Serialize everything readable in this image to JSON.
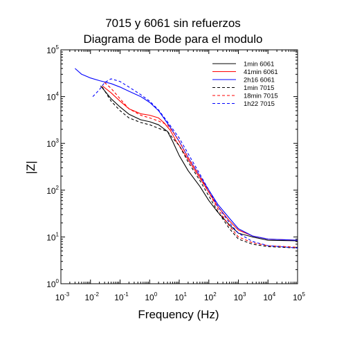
{
  "chart_data": {
    "type": "line",
    "title": "7015 y 6061 sin refuerzos",
    "subtitle": "Diagrama de Bode para el modulo",
    "xlabel": "Frequency (Hz)",
    "ylabel": "|Z|",
    "x_scale": "log",
    "y_scale": "log",
    "xlim": [
      0.001,
      100000
    ],
    "ylim": [
      1,
      100000
    ],
    "x_ticks": [
      {
        "base": "10",
        "exp": "-3"
      },
      {
        "base": "10",
        "exp": "-2"
      },
      {
        "base": "10",
        "exp": "-1"
      },
      {
        "base": "10",
        "exp": "0"
      },
      {
        "base": "10",
        "exp": "1"
      },
      {
        "base": "10",
        "exp": "2"
      },
      {
        "base": "10",
        "exp": "3"
      },
      {
        "base": "10",
        "exp": "4"
      },
      {
        "base": "10",
        "exp": "5"
      }
    ],
    "y_ticks": [
      {
        "base": "10",
        "exp": "0"
      },
      {
        "base": "10",
        "exp": "1"
      },
      {
        "base": "10",
        "exp": "2"
      },
      {
        "base": "10",
        "exp": "3"
      },
      {
        "base": "10",
        "exp": "4"
      },
      {
        "base": "10",
        "exp": "5"
      }
    ],
    "grid": false,
    "legend_position": "top-right",
    "series": [
      {
        "name": "1min 6061",
        "color": "#000000",
        "dash": "solid",
        "x": [
          0.022,
          0.05,
          0.1,
          0.2,
          0.5,
          1,
          2,
          4,
          6,
          10,
          20,
          50,
          100,
          200,
          500,
          1000,
          3000,
          10000,
          100000
        ],
        "y": [
          17000,
          9000,
          6000,
          4200,
          3200,
          2900,
          2500,
          1800,
          1100,
          550,
          260,
          120,
          60,
          34,
          18,
          12,
          10,
          8.5,
          8.3
        ]
      },
      {
        "name": "41min 6061",
        "color": "#ff0000",
        "dash": "solid",
        "x": [
          0.025,
          0.05,
          0.1,
          0.2,
          0.5,
          1,
          2,
          3,
          5,
          8,
          10,
          20,
          50,
          100,
          200,
          500,
          1000,
          3000,
          10000,
          100000
        ],
        "y": [
          17000,
          12000,
          8000,
          5500,
          4300,
          4000,
          3500,
          2800,
          1900,
          1100,
          900,
          450,
          180,
          90,
          45,
          22,
          14,
          10.5,
          9,
          8.5
        ]
      },
      {
        "name": "2h16 6061",
        "color": "#0000ff",
        "dash": "solid",
        "x": [
          0.003,
          0.005,
          0.01,
          0.02,
          0.05,
          0.1,
          0.2,
          0.5,
          1,
          2,
          3,
          5,
          10,
          20,
          50,
          100,
          200,
          500,
          1000,
          3000,
          10000,
          100000
        ],
        "y": [
          40000,
          30000,
          25000,
          22000,
          19000,
          16000,
          13000,
          10000,
          7500,
          5000,
          3500,
          2200,
          1100,
          500,
          200,
          100,
          50,
          25,
          15,
          10.5,
          9,
          8.5
        ]
      },
      {
        "name": "1min 7015",
        "color": "#000000",
        "dash": "dashed",
        "x": [
          0.025,
          0.05,
          0.1,
          0.2,
          0.5,
          1,
          2,
          4,
          6,
          10,
          20,
          50,
          100,
          200,
          500,
          1000,
          3000,
          10000,
          100000
        ],
        "y": [
          16000,
          8000,
          5000,
          3500,
          2800,
          2500,
          2100,
          1800,
          1300,
          900,
          400,
          160,
          75,
          35,
          15,
          9,
          7,
          6.2,
          5.8
        ]
      },
      {
        "name": "18min 7015",
        "color": "#ff0000",
        "dash": "dashed",
        "x": [
          0.03,
          0.05,
          0.1,
          0.2,
          0.5,
          1,
          2,
          4,
          6,
          10,
          20,
          50,
          100,
          200,
          500,
          1000,
          3000,
          10000,
          100000
        ],
        "y": [
          20000,
          15000,
          9000,
          5500,
          4000,
          3500,
          3000,
          2500,
          1800,
          1100,
          500,
          200,
          90,
          40,
          17,
          10,
          7.5,
          6.5,
          6
        ]
      },
      {
        "name": "1h22 7015",
        "color": "#0000ff",
        "dash": "dashed",
        "x": [
          0.012,
          0.02,
          0.03,
          0.05,
          0.1,
          0.2,
          0.5,
          1,
          2,
          3,
          5,
          10,
          20,
          50,
          100,
          200,
          500,
          1000,
          3000,
          10000,
          100000
        ],
        "y": [
          10000,
          14000,
          20000,
          24000,
          21000,
          16000,
          11000,
          8000,
          5200,
          3700,
          2400,
          1300,
          600,
          220,
          100,
          45,
          20,
          12,
          8,
          6.5,
          5.8
        ]
      }
    ]
  }
}
